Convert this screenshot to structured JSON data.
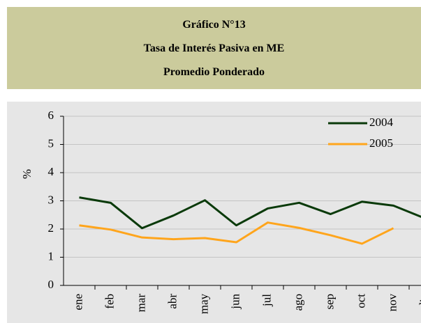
{
  "chart_data": {
    "type": "line",
    "title": [
      "Gráfico N°13",
      "Tasa de Interés Pasiva en ME",
      "Promedio Ponderado"
    ],
    "y_label": "%",
    "categories": [
      "ene",
      "feb",
      "mar",
      "abr",
      "may",
      "jun",
      "jul",
      "ago",
      "sep",
      "oct",
      "nov",
      "dic"
    ],
    "series": [
      {
        "name": "2004",
        "color": "#0a3a0a",
        "values": [
          3.12,
          2.93,
          2.03,
          2.48,
          3.02,
          2.13,
          2.73,
          2.93,
          2.53,
          2.97,
          2.83,
          2.38
        ]
      },
      {
        "name": "2005",
        "color": "#ffa51c",
        "values": [
          2.13,
          1.98,
          1.7,
          1.64,
          1.68,
          1.53,
          2.23,
          2.04,
          1.78,
          1.48,
          2.03,
          null
        ]
      }
    ],
    "ylim": [
      0,
      6
    ],
    "yticks": [
      0,
      1,
      2,
      3,
      4,
      5,
      6
    ],
    "grid": true,
    "legend": "top-right"
  }
}
